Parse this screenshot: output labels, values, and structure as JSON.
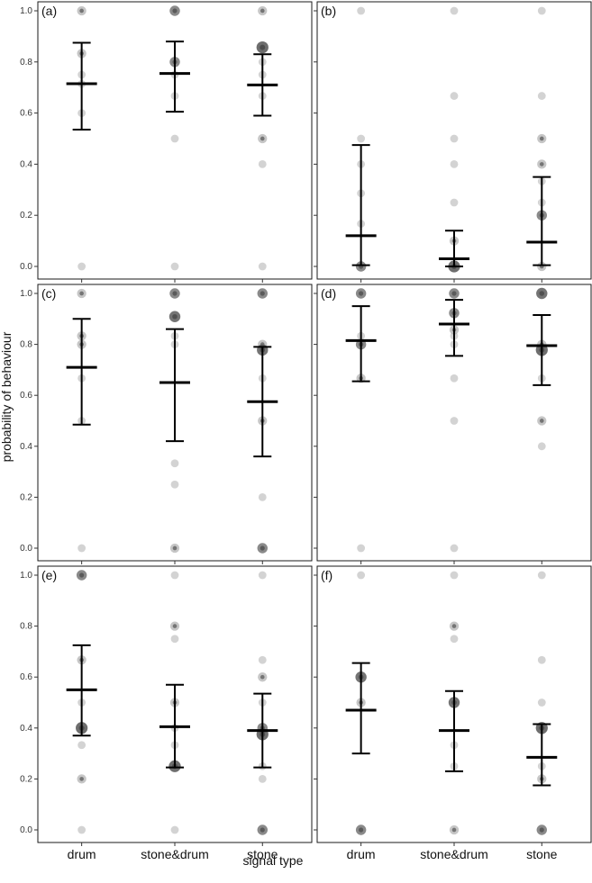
{
  "figure": {
    "ylabel": "probability of behaviour",
    "xlabel": "signal type"
  },
  "chart_data": [
    {
      "type": "scatter",
      "panel_label": "(a)",
      "categories": [
        "drum",
        "stone&drum",
        "stone"
      ],
      "ylim": [
        0,
        1
      ],
      "yticks": [
        "0.0",
        "0.2",
        "0.4",
        "0.6",
        "0.8",
        "1.0"
      ],
      "means": [
        0.715,
        0.755,
        0.71
      ],
      "ci_lower": [
        0.535,
        0.605,
        0.59
      ],
      "ci_upper": [
        0.875,
        0.88,
        0.83
      ],
      "points": [
        [
          {
            "y": 1.0,
            "n": 2
          },
          {
            "y": 0.833,
            "n": 2
          },
          {
            "y": 0.75,
            "n": 1
          },
          {
            "y": 0.714,
            "n": 1
          },
          {
            "y": 0.6,
            "n": 1
          },
          {
            "y": 0.0,
            "n": 1
          }
        ],
        [
          {
            "y": 1.0,
            "n": 3
          },
          {
            "y": 0.8,
            "n": 3
          },
          {
            "y": 0.75,
            "n": 1
          },
          {
            "y": 0.667,
            "n": 1
          },
          {
            "y": 0.5,
            "n": 1
          },
          {
            "y": 0.0,
            "n": 1
          }
        ],
        [
          {
            "y": 1.0,
            "n": 2
          },
          {
            "y": 0.857,
            "n": 5
          },
          {
            "y": 0.8,
            "n": 1
          },
          {
            "y": 0.75,
            "n": 1
          },
          {
            "y": 0.667,
            "n": 1
          },
          {
            "y": 0.5,
            "n": 2
          },
          {
            "y": 0.4,
            "n": 1
          },
          {
            "y": 0.0,
            "n": 1
          }
        ]
      ]
    },
    {
      "type": "scatter",
      "panel_label": "(b)",
      "categories": [
        "drum",
        "stone&drum",
        "stone"
      ],
      "ylim": [
        0,
        1
      ],
      "yticks": [
        "0.0",
        "0.2",
        "0.4",
        "0.6",
        "0.8",
        "1.0"
      ],
      "means": [
        0.12,
        0.03,
        0.095
      ],
      "ci_lower": [
        0.005,
        0.0,
        0.005
      ],
      "ci_upper": [
        0.475,
        0.14,
        0.35
      ],
      "points": [
        [
          {
            "y": 1.0,
            "n": 1
          },
          {
            "y": 0.5,
            "n": 1
          },
          {
            "y": 0.4,
            "n": 1
          },
          {
            "y": 0.286,
            "n": 1
          },
          {
            "y": 0.167,
            "n": 1
          },
          {
            "y": 0.0,
            "n": 3
          }
        ],
        [
          {
            "y": 1.0,
            "n": 1
          },
          {
            "y": 0.667,
            "n": 1
          },
          {
            "y": 0.5,
            "n": 1
          },
          {
            "y": 0.4,
            "n": 1
          },
          {
            "y": 0.25,
            "n": 1
          },
          {
            "y": 0.1,
            "n": 2
          },
          {
            "y": 0.0,
            "n": 5
          }
        ],
        [
          {
            "y": 1.0,
            "n": 1
          },
          {
            "y": 0.667,
            "n": 1
          },
          {
            "y": 0.5,
            "n": 2
          },
          {
            "y": 0.4,
            "n": 2
          },
          {
            "y": 0.333,
            "n": 1
          },
          {
            "y": 0.25,
            "n": 1
          },
          {
            "y": 0.2,
            "n": 3
          },
          {
            "y": 0.0,
            "n": 2
          }
        ]
      ]
    },
    {
      "type": "scatter",
      "panel_label": "(c)",
      "categories": [
        "drum",
        "stone&drum",
        "stone"
      ],
      "ylim": [
        0,
        1
      ],
      "yticks": [
        "0.0",
        "0.2",
        "0.4",
        "0.6",
        "0.8",
        "1.0"
      ],
      "means": [
        0.71,
        0.65,
        0.575
      ],
      "ci_lower": [
        0.485,
        0.42,
        0.36
      ],
      "ci_upper": [
        0.9,
        0.86,
        0.79
      ],
      "points": [
        [
          {
            "y": 1.0,
            "n": 2
          },
          {
            "y": 0.833,
            "n": 2
          },
          {
            "y": 0.8,
            "n": 2
          },
          {
            "y": 0.667,
            "n": 1
          },
          {
            "y": 0.5,
            "n": 1
          },
          {
            "y": 0.0,
            "n": 1
          }
        ],
        [
          {
            "y": 1.0,
            "n": 3
          },
          {
            "y": 0.909,
            "n": 4
          },
          {
            "y": 0.833,
            "n": 1
          },
          {
            "y": 0.8,
            "n": 1
          },
          {
            "y": 0.333,
            "n": 1
          },
          {
            "y": 0.25,
            "n": 1
          },
          {
            "y": 0.0,
            "n": 2
          }
        ],
        [
          {
            "y": 1.0,
            "n": 3
          },
          {
            "y": 0.8,
            "n": 2
          },
          {
            "y": 0.778,
            "n": 4
          },
          {
            "y": 0.667,
            "n": 1
          },
          {
            "y": 0.5,
            "n": 2
          },
          {
            "y": 0.2,
            "n": 1
          },
          {
            "y": 0.0,
            "n": 3
          }
        ]
      ]
    },
    {
      "type": "scatter",
      "panel_label": "(d)",
      "categories": [
        "drum",
        "stone&drum",
        "stone"
      ],
      "ylim": [
        0,
        1
      ],
      "yticks": [
        "0.0",
        "0.2",
        "0.4",
        "0.6",
        "0.8",
        "1.0"
      ],
      "means": [
        0.815,
        0.88,
        0.795
      ],
      "ci_lower": [
        0.655,
        0.755,
        0.64
      ],
      "ci_upper": [
        0.95,
        0.975,
        0.915
      ],
      "points": [
        [
          {
            "y": 1.0,
            "n": 3
          },
          {
            "y": 0.833,
            "n": 1
          },
          {
            "y": 0.8,
            "n": 3
          },
          {
            "y": 0.667,
            "n": 2
          },
          {
            "y": 0.0,
            "n": 1
          }
        ],
        [
          {
            "y": 1.0,
            "n": 3
          },
          {
            "y": 0.923,
            "n": 3
          },
          {
            "y": 0.857,
            "n": 2
          },
          {
            "y": 0.833,
            "n": 1
          },
          {
            "y": 0.8,
            "n": 1
          },
          {
            "y": 0.667,
            "n": 1
          },
          {
            "y": 0.5,
            "n": 1
          },
          {
            "y": 0.0,
            "n": 1
          }
        ],
        [
          {
            "y": 1.0,
            "n": 4
          },
          {
            "y": 0.8,
            "n": 2
          },
          {
            "y": 0.778,
            "n": 5
          },
          {
            "y": 0.667,
            "n": 1
          },
          {
            "y": 0.5,
            "n": 2
          },
          {
            "y": 0.4,
            "n": 1
          }
        ]
      ]
    },
    {
      "type": "scatter",
      "panel_label": "(e)",
      "categories": [
        "drum",
        "stone&drum",
        "stone"
      ],
      "ylim": [
        0,
        1
      ],
      "yticks": [
        "0.0",
        "0.2",
        "0.4",
        "0.6",
        "0.8",
        "1.0"
      ],
      "means": [
        0.55,
        0.405,
        0.39
      ],
      "ci_lower": [
        0.37,
        0.245,
        0.245
      ],
      "ci_upper": [
        0.725,
        0.57,
        0.535
      ],
      "points": [
        [
          {
            "y": 1.0,
            "n": 3
          },
          {
            "y": 0.667,
            "n": 2
          },
          {
            "y": 0.5,
            "n": 1
          },
          {
            "y": 0.4,
            "n": 5
          },
          {
            "y": 0.333,
            "n": 1
          },
          {
            "y": 0.2,
            "n": 2
          },
          {
            "y": 0.0,
            "n": 1
          }
        ],
        [
          {
            "y": 1.0,
            "n": 1
          },
          {
            "y": 0.8,
            "n": 2
          },
          {
            "y": 0.75,
            "n": 1
          },
          {
            "y": 0.5,
            "n": 2
          },
          {
            "y": 0.4,
            "n": 1
          },
          {
            "y": 0.333,
            "n": 1
          },
          {
            "y": 0.25,
            "n": 5
          },
          {
            "y": 0.0,
            "n": 1
          }
        ],
        [
          {
            "y": 1.0,
            "n": 1
          },
          {
            "y": 0.667,
            "n": 1
          },
          {
            "y": 0.6,
            "n": 2
          },
          {
            "y": 0.5,
            "n": 1
          },
          {
            "y": 0.4,
            "n": 3
          },
          {
            "y": 0.375,
            "n": 5
          },
          {
            "y": 0.25,
            "n": 1
          },
          {
            "y": 0.2,
            "n": 1
          },
          {
            "y": 0.0,
            "n": 3
          }
        ]
      ]
    },
    {
      "type": "scatter",
      "panel_label": "(f)",
      "categories": [
        "drum",
        "stone&drum",
        "stone"
      ],
      "ylim": [
        0,
        1
      ],
      "yticks": [
        "0.0",
        "0.2",
        "0.4",
        "0.6",
        "0.8",
        "1.0"
      ],
      "means": [
        0.47,
        0.39,
        0.285
      ],
      "ci_lower": [
        0.3,
        0.23,
        0.175
      ],
      "ci_upper": [
        0.655,
        0.545,
        0.415
      ],
      "points": [
        [
          {
            "y": 1.0,
            "n": 1
          },
          {
            "y": 0.6,
            "n": 4
          },
          {
            "y": 0.5,
            "n": 2
          },
          {
            "y": 0.0,
            "n": 3
          }
        ],
        [
          {
            "y": 1.0,
            "n": 1
          },
          {
            "y": 0.8,
            "n": 2
          },
          {
            "y": 0.75,
            "n": 1
          },
          {
            "y": 0.5,
            "n": 4
          },
          {
            "y": 0.333,
            "n": 1
          },
          {
            "y": 0.25,
            "n": 1
          },
          {
            "y": 0.0,
            "n": 2
          }
        ],
        [
          {
            "y": 1.0,
            "n": 1
          },
          {
            "y": 0.667,
            "n": 1
          },
          {
            "y": 0.5,
            "n": 1
          },
          {
            "y": 0.4,
            "n": 5
          },
          {
            "y": 0.25,
            "n": 1
          },
          {
            "y": 0.2,
            "n": 2
          },
          {
            "y": 0.0,
            "n": 3
          }
        ]
      ]
    }
  ]
}
